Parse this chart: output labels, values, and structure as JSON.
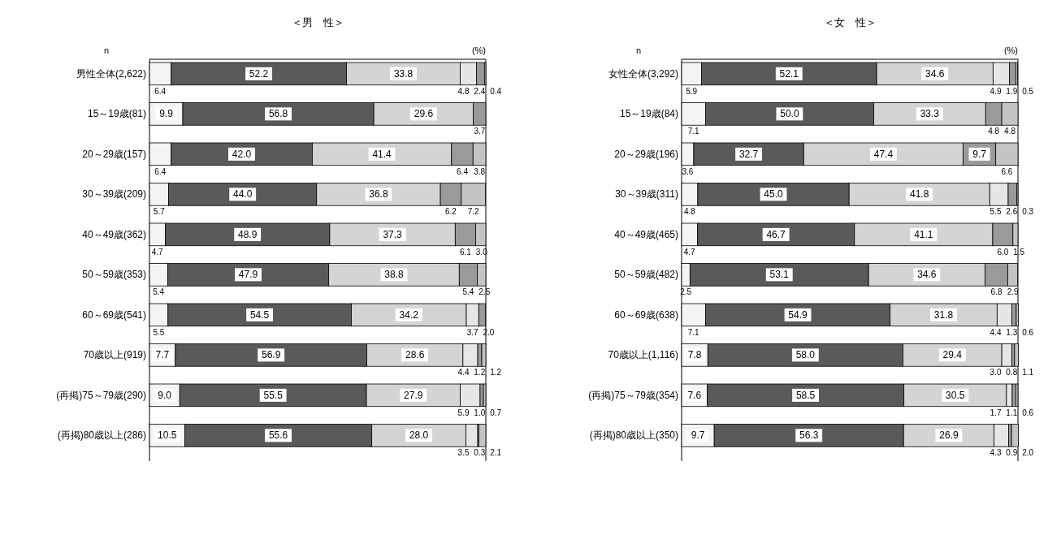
{
  "chart_data": [
    {
      "type": "bar",
      "orientation": "horizontal",
      "stacked": true,
      "title": "＜男　性＞",
      "tick_labels": "y",
      "xlim": [
        0,
        100
      ],
      "annotations": [
        "n",
        "(%)"
      ],
      "categories": [
        "男性全体(2,622)",
        "15～19歳(81)",
        "20～29歳(157)",
        "30～39歳(209)",
        "40～49歳(362)",
        "50～59歳(353)",
        "60～69歳(541)",
        "70歳以上(919)",
        "(再掲)75～79歳(290)",
        "(再掲)80歳以上(286)"
      ],
      "series": [
        {
          "color": "#f4f4f4",
          "values": [
            6.4,
            9.9,
            6.4,
            5.7,
            4.7,
            5.4,
            5.5,
            7.7,
            9.0,
            10.5
          ],
          "value_labels": [
            "6.4",
            "9.9",
            "6.4",
            "5.7",
            "4.7",
            "5.4",
            "5.5",
            "7.7",
            "9.0",
            "10.5"
          ]
        },
        {
          "color": "#5a5a5a",
          "values": [
            52.2,
            56.8,
            42.0,
            44.0,
            48.9,
            47.9,
            54.5,
            56.9,
            55.5,
            55.6
          ],
          "value_labels": [
            "52.2",
            "56.8",
            "42.0",
            "44.0",
            "48.9",
            "47.9",
            "54.5",
            "56.9",
            "55.5",
            "55.6"
          ]
        },
        {
          "color": "#d4d4d4",
          "values": [
            33.8,
            29.6,
            41.4,
            36.8,
            37.3,
            38.8,
            34.2,
            28.6,
            27.9,
            28.0
          ],
          "value_labels": [
            "33.8",
            "29.6",
            "41.4",
            "36.8",
            "37.3",
            "38.8",
            "34.2",
            "28.6",
            "27.9",
            "28.0"
          ]
        },
        {
          "color": "#e6e6e6",
          "values": [
            4.8,
            null,
            null,
            null,
            null,
            null,
            3.7,
            4.4,
            5.9,
            3.5
          ],
          "value_labels": [
            "4.8",
            null,
            null,
            null,
            null,
            null,
            "3.7",
            "4.4",
            "5.9",
            "3.5"
          ]
        },
        {
          "color": "#9a9a9a",
          "values": [
            2.4,
            3.7,
            6.4,
            6.2,
            6.1,
            5.4,
            2.0,
            1.2,
            1.0,
            0.3
          ],
          "value_labels": [
            "2.4",
            "3.7",
            "6.4",
            "6.2",
            "6.1",
            "5.4",
            "2.0",
            "1.2",
            "1.0",
            "0.3"
          ]
        },
        {
          "color": "#c4c4c4",
          "values": [
            0.4,
            null,
            3.8,
            7.2,
            3.0,
            2.5,
            null,
            1.2,
            0.7,
            2.1
          ],
          "value_labels": [
            "0.4",
            null,
            "3.8",
            "7.2",
            "3.0",
            "2.5",
            null,
            "1.2",
            "0.7",
            "2.1"
          ]
        }
      ]
    },
    {
      "type": "bar",
      "orientation": "horizontal",
      "stacked": true,
      "title": "＜女　性＞",
      "tick_labels": "y",
      "xlim": [
        0,
        100
      ],
      "annotations": [
        "n",
        "(%)"
      ],
      "categories": [
        "女性全体(3,292)",
        "15～19歳(84)",
        "20～29歳(196)",
        "30～39歳(311)",
        "40～49歳(465)",
        "50～59歳(482)",
        "60～69歳(638)",
        "70歳以上(1,116)",
        "(再掲)75～79歳(354)",
        "(再掲)80歳以上(350)"
      ],
      "series": [
        {
          "color": "#f4f4f4",
          "values": [
            5.9,
            7.1,
            3.6,
            4.8,
            4.7,
            2.5,
            7.1,
            7.8,
            7.6,
            9.7
          ],
          "value_labels": [
            "5.9",
            "7.1",
            "3.6",
            "4.8",
            "4.7",
            "2.5",
            "7.1",
            "7.8",
            "7.6",
            "9.7"
          ]
        },
        {
          "color": "#5a5a5a",
          "values": [
            52.1,
            50.0,
            32.7,
            45.0,
            46.7,
            53.1,
            54.9,
            58.0,
            58.5,
            56.3
          ],
          "value_labels": [
            "52.1",
            "50.0",
            "32.7",
            "45.0",
            "46.7",
            "53.1",
            "54.9",
            "58.0",
            "58.5",
            "56.3"
          ]
        },
        {
          "color": "#d4d4d4",
          "values": [
            34.6,
            33.3,
            47.4,
            41.8,
            41.1,
            34.6,
            31.8,
            29.4,
            30.5,
            26.9
          ],
          "value_labels": [
            "34.6",
            "33.3",
            "47.4",
            "41.8",
            "41.1",
            "34.6",
            "31.8",
            "29.4",
            "30.5",
            "26.9"
          ]
        },
        {
          "color": "#e6e6e6",
          "values": [
            4.9,
            null,
            null,
            5.5,
            null,
            null,
            4.4,
            3.0,
            1.7,
            4.3
          ],
          "value_labels": [
            "4.9",
            null,
            null,
            "5.5",
            null,
            null,
            "4.4",
            "3.0",
            "1.7",
            "4.3"
          ]
        },
        {
          "color": "#9a9a9a",
          "values": [
            1.9,
            4.8,
            9.7,
            2.6,
            6.0,
            6.8,
            1.3,
            0.8,
            1.1,
            0.9
          ],
          "value_labels": [
            "1.9",
            "4.8",
            "9.7",
            "2.6",
            "6.0",
            "6.8",
            "1.3",
            "0.8",
            "1.1",
            "0.9"
          ]
        },
        {
          "color": "#c4c4c4",
          "values": [
            0.5,
            4.8,
            6.6,
            0.3,
            1.5,
            2.9,
            0.6,
            1.1,
            0.6,
            2.0
          ],
          "value_labels": [
            "0.5",
            "4.8",
            "6.6",
            "0.3",
            "1.5",
            "2.9",
            "0.6",
            "1.1",
            "0.6",
            "2.0"
          ]
        }
      ]
    }
  ]
}
